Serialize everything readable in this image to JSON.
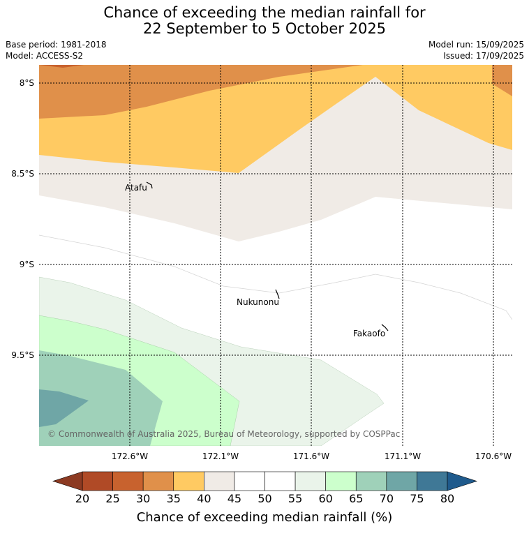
{
  "header": {
    "title_line1": "Chance of exceeding the median rainfall for",
    "title_line2": "22 September to 5 October 2025",
    "base_period": "Base period: 1981-2018",
    "model": "Model: ACCESS-S2",
    "model_run": "Model run: 15/09/2025",
    "issued": "Issued: 17/09/2025"
  },
  "map": {
    "lat_labels": [
      "8°S",
      "8.5°S",
      "9°S",
      "9.5°S"
    ],
    "lon_labels": [
      "172.6°W",
      "172.1°W",
      "171.6°W",
      "171.1°W",
      "170.6°W"
    ],
    "places": [
      {
        "name": "Atafu"
      },
      {
        "name": "Nukunonu"
      },
      {
        "name": "Fakaofo"
      }
    ],
    "copyright": "© Commonwealth of Australia 2025, Bureau of Meteorology, supported by COSPPac"
  },
  "colorbar": {
    "ticks": [
      "20",
      "25",
      "30",
      "35",
      "40",
      "45",
      "50",
      "55",
      "60",
      "65",
      "70",
      "75",
      "80"
    ],
    "colors": [
      "#b04a26",
      "#c8622e",
      "#e0904a",
      "#ffca62",
      "#f0ebe6",
      "#ffffff",
      "#ffffff",
      "#eaf4ea",
      "#ccffcc",
      "#9fd1b9",
      "#6fa6a6",
      "#3f7896"
    ],
    "under_color": "#8c3a22",
    "over_color": "#1f5a8c",
    "title": "Chance of exceeding median rainfall (%)"
  }
}
